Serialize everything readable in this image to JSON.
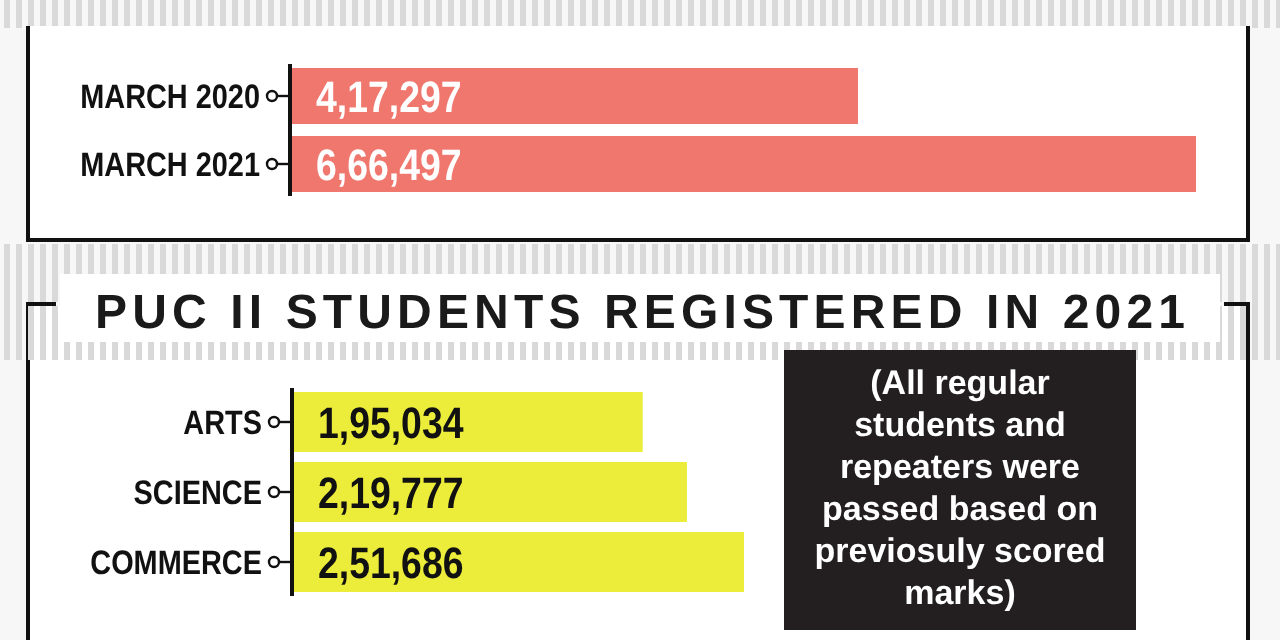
{
  "chart_data": [
    {
      "type": "bar",
      "orientation": "horizontal",
      "categories": [
        "MARCH 2020",
        "MARCH 2021"
      ],
      "values": [
        417297,
        666497
      ],
      "color": "#f0776e",
      "value_labels": [
        "4,17,297",
        "6,66,497"
      ]
    },
    {
      "type": "bar",
      "orientation": "horizontal",
      "title": "PUC II STUDENTS REGISTERED IN 2021",
      "categories": [
        "ARTS",
        "SCIENCE",
        "COMMERCE"
      ],
      "values": [
        195034,
        219777,
        251686
      ],
      "color": "#ecec3a",
      "value_labels": [
        "1,95,034",
        "2,19,777",
        "2,51,686"
      ],
      "annotations": [
        "(All regular students and repeaters were passed based on previosuly scored marks)"
      ]
    }
  ]
}
